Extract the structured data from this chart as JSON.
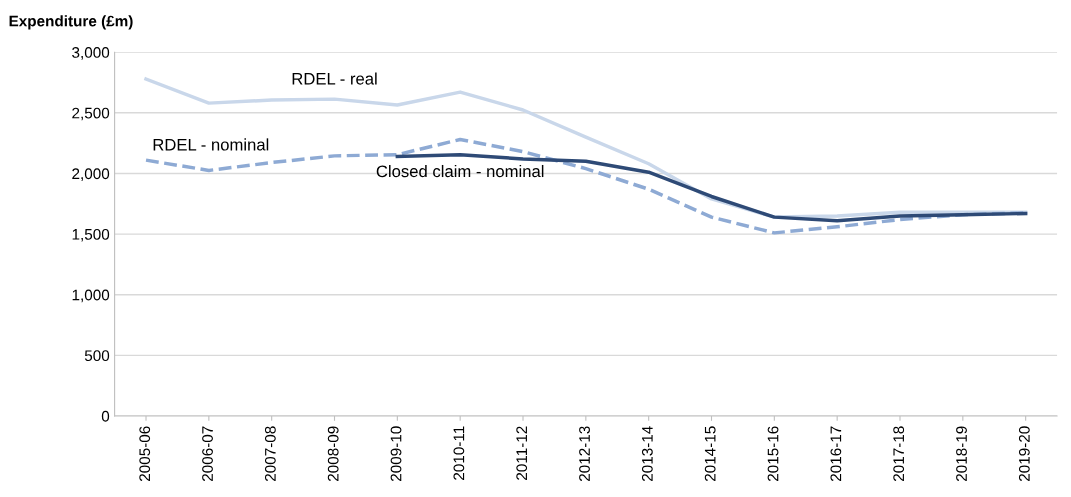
{
  "chart_data": {
    "type": "line",
    "ylabel": "Expenditure (£m)",
    "categories": [
      "2005-06",
      "2006-07",
      "2007-08",
      "2008-09",
      "2009-10",
      "2010-11",
      "2011-12",
      "2012-13",
      "2013-14",
      "2014-15",
      "2015-16",
      "2016-17",
      "2017-18",
      "2018-19",
      "2019-20"
    ],
    "series": [
      {
        "name": "RDEL - real",
        "color": "#c9d7ea",
        "line_style": "solid",
        "values": [
          2778,
          2580,
          2605,
          2613,
          2564,
          2671,
          2523,
          2300,
          2080,
          1790,
          1640,
          1650,
          1680,
          1680,
          1680
        ]
      },
      {
        "name": "RDEL - nominal",
        "color": "#8eaad4",
        "line_style": "dashed",
        "values": [
          2110,
          2025,
          2090,
          2145,
          2155,
          2280,
          2180,
          2040,
          1870,
          1640,
          1510,
          1560,
          1620,
          1660,
          1675
        ]
      },
      {
        "name": "Closed claim - nominal",
        "color": "#2e4a76",
        "line_style": "solid",
        "values": [
          null,
          null,
          null,
          null,
          2140,
          2155,
          2120,
          2100,
          2010,
          1810,
          1640,
          1610,
          1650,
          1660,
          1670
        ]
      }
    ],
    "ylim": [
      0,
      3000
    ],
    "yticks": [
      {
        "value": 0,
        "label": "0"
      },
      {
        "value": 500,
        "label": "500"
      },
      {
        "value": 1000,
        "label": "1,000"
      },
      {
        "value": 1500,
        "label": "1,500"
      },
      {
        "value": 2000,
        "label": "2,000"
      },
      {
        "value": 2500,
        "label": "2,500"
      },
      {
        "value": 3000,
        "label": "3,000"
      }
    ],
    "grid": "y",
    "legend": false,
    "marker": "none"
  }
}
